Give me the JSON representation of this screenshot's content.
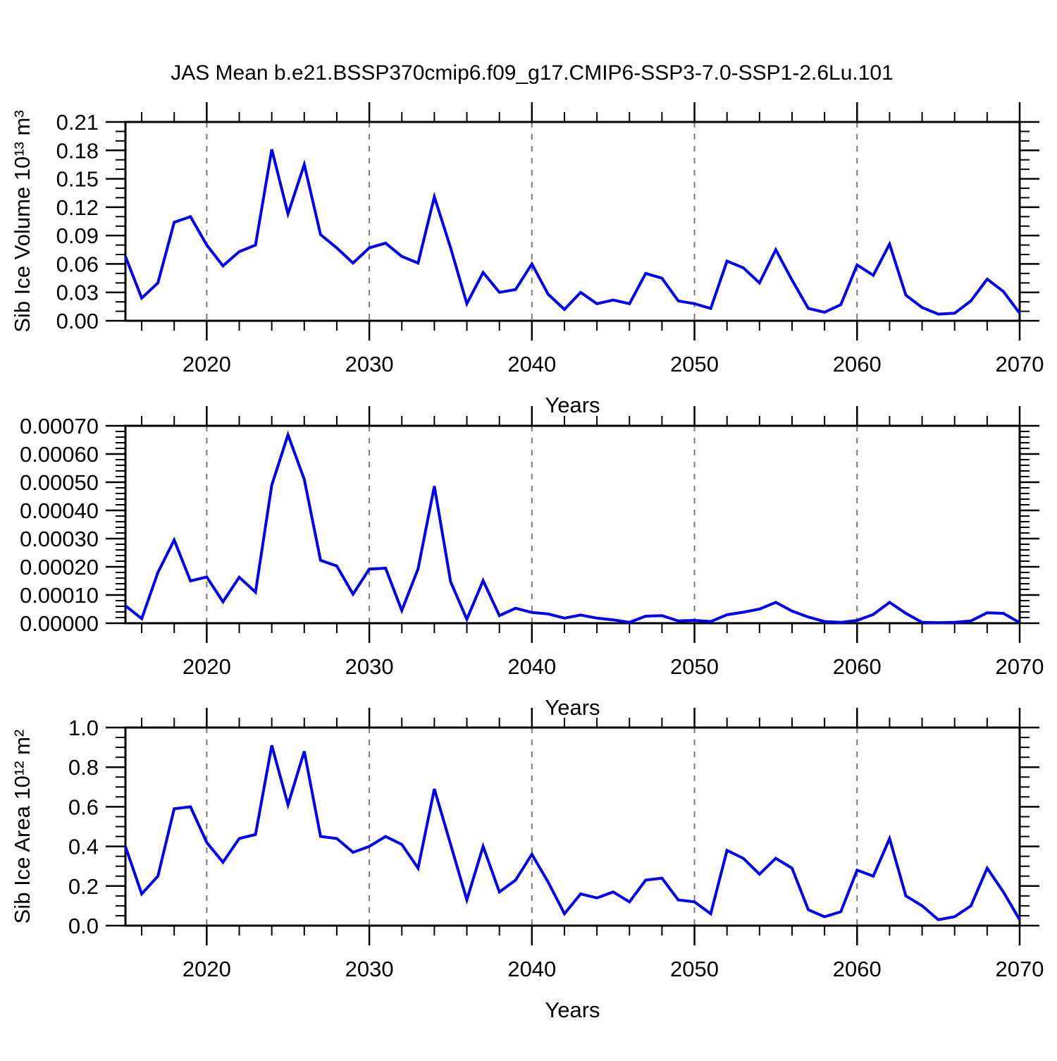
{
  "title": "JAS Mean b.e21.BSSP370cmip6.f09_g17.CMIP6-SSP3-7.0-SSP1-2.6Lu.101",
  "line_color": "#0000F2",
  "grid_color": "#7a7a7a",
  "axis_color": "#000000",
  "chart_data": [
    {
      "type": "line",
      "title": "",
      "xlabel": "Years",
      "ylabel": "Sib Ice Volume 10¹³ m³",
      "x_start": 2015,
      "x_end": 2070,
      "xlim": [
        2015,
        2070
      ],
      "xticks": [
        2020,
        2030,
        2040,
        2050,
        2060,
        2070
      ],
      "xtick_labels": [
        "2020",
        "2030",
        "2040",
        "2050",
        "2060",
        "2070"
      ],
      "x_minor_step": 2,
      "ylim": [
        0,
        0.21
      ],
      "ytick_values": [
        0.0,
        0.03,
        0.06,
        0.09,
        0.12,
        0.15,
        0.18,
        0.21
      ],
      "ytick_labels": [
        "0.00",
        "0.03",
        "0.06",
        "0.09",
        "0.12",
        "0.15",
        "0.18",
        "0.21"
      ],
      "y_minor_divisions": 3,
      "grid": "vertical-dashed",
      "legend": "none",
      "values": [
        0.068,
        0.024,
        0.04,
        0.104,
        0.11,
        0.08,
        0.058,
        0.073,
        0.08,
        0.181,
        0.113,
        0.165,
        0.091,
        0.077,
        0.061,
        0.077,
        0.082,
        0.068,
        0.061,
        0.131,
        0.077,
        0.018,
        0.051,
        0.03,
        0.033,
        0.06,
        0.028,
        0.012,
        0.03,
        0.018,
        0.022,
        0.018,
        0.05,
        0.045,
        0.021,
        0.018,
        0.013,
        0.063,
        0.056,
        0.04,
        0.075,
        0.043,
        0.013,
        0.009,
        0.017,
        0.059,
        0.048,
        0.081,
        0.027,
        0.014,
        0.007,
        0.008,
        0.021,
        0.044,
        0.031,
        0.008
      ]
    },
    {
      "type": "line",
      "title": "",
      "xlabel": "Years",
      "ylabel": "",
      "x_start": 2015,
      "x_end": 2070,
      "xlim": [
        2015,
        2070
      ],
      "xticks": [
        2020,
        2030,
        2040,
        2050,
        2060,
        2070
      ],
      "xtick_labels": [
        "2020",
        "2030",
        "2040",
        "2050",
        "2060",
        "2070"
      ],
      "x_minor_step": 2,
      "ylim": [
        0,
        0.0007
      ],
      "ytick_values": [
        0.0,
        0.0001,
        0.0002,
        0.0003,
        0.0004,
        0.0005,
        0.0006,
        0.0007
      ],
      "ytick_labels": [
        "0.00000",
        "0.00010",
        "0.00020",
        "0.00030",
        "0.00040",
        "0.00050",
        "0.00060",
        "0.00070"
      ],
      "y_minor_divisions": 5,
      "grid": "vertical-dashed",
      "legend": "none",
      "values": [
        6.2e-05,
        1.6e-05,
        0.00018,
        0.000295,
        0.00015,
        0.000164,
        7.6e-05,
        0.000163,
        0.00011,
        0.00049,
        0.000668,
        0.00051,
        0.000223,
        0.000203,
        0.000103,
        0.000192,
        0.000195,
        4.5e-05,
        0.000193,
        0.000486,
        0.000147,
        1.4e-05,
        0.000151,
        2.7e-05,
        5.3e-05,
        3.8e-05,
        3.3e-05,
        1.8e-05,
        2.9e-05,
        1.8e-05,
        1.2e-05,
        3e-06,
        2.5e-05,
        2.7e-05,
        8e-06,
        1e-05,
        6e-06,
        3e-05,
        3.9e-05,
        5e-05,
        7.4e-05,
        4.3e-05,
        2.2e-05,
        6e-06,
        3e-06,
        1e-05,
        3.1e-05,
        7.4e-05,
        3.5e-05,
        3e-06,
        2e-06,
        3e-06,
        8e-06,
        3.7e-05,
        3.5e-05,
        2e-06
      ]
    },
    {
      "type": "line",
      "title": "",
      "xlabel": "Years",
      "ylabel": "Sib Ice Area 10¹² m²",
      "x_start": 2015,
      "x_end": 2070,
      "xlim": [
        2015,
        2070
      ],
      "xticks": [
        2020,
        2030,
        2040,
        2050,
        2060,
        2070
      ],
      "xtick_labels": [
        "2020",
        "2030",
        "2040",
        "2050",
        "2060",
        "2070"
      ],
      "x_minor_step": 2,
      "ylim": [
        0,
        1.0
      ],
      "ytick_values": [
        0.0,
        0.2,
        0.4,
        0.6,
        0.8,
        1.0
      ],
      "ytick_labels": [
        "0.0",
        "0.2",
        "0.4",
        "0.6",
        "0.8",
        "1.0"
      ],
      "y_minor_divisions": 4,
      "grid": "vertical-dashed",
      "legend": "none",
      "values": [
        0.4,
        0.16,
        0.25,
        0.59,
        0.6,
        0.42,
        0.32,
        0.44,
        0.46,
        0.91,
        0.61,
        0.88,
        0.45,
        0.44,
        0.37,
        0.4,
        0.45,
        0.41,
        0.29,
        0.69,
        0.41,
        0.13,
        0.4,
        0.17,
        0.23,
        0.36,
        0.22,
        0.06,
        0.16,
        0.14,
        0.17,
        0.12,
        0.23,
        0.24,
        0.13,
        0.12,
        0.06,
        0.38,
        0.34,
        0.26,
        0.34,
        0.29,
        0.08,
        0.045,
        0.07,
        0.28,
        0.25,
        0.44,
        0.15,
        0.1,
        0.03,
        0.045,
        0.1,
        0.29,
        0.17,
        0.03
      ]
    }
  ]
}
